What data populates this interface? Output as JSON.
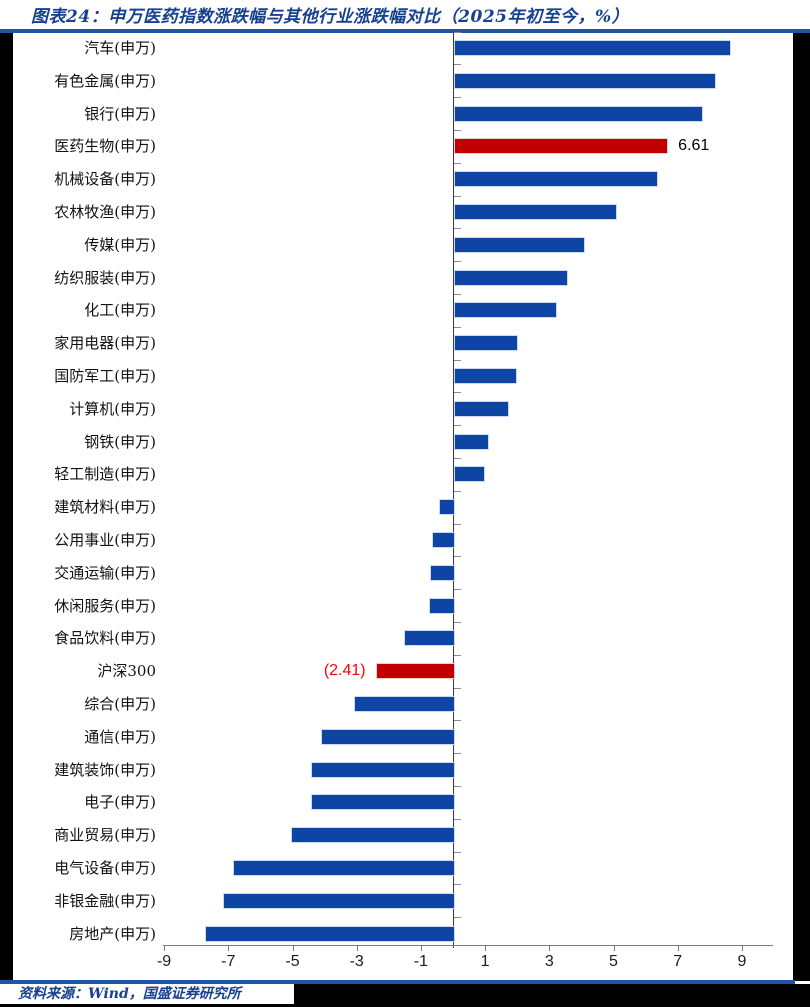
{
  "header": {
    "title": "图表24：申万医药指数涨跌幅与其他行业涨跌幅对比（2025年初至今，%）"
  },
  "footer": {
    "source": "资料来源：Wind，国盛证券研究所"
  },
  "colors": {
    "accent_blue": "#17418F",
    "rule_blue": "#2154A6",
    "bar_blue": "#0E45A5",
    "bar_red": "#C00000",
    "value_label_red": "#FF0000",
    "axis_gray": "#7a7a7a",
    "text_black": "#111111"
  },
  "chart_data": {
    "type": "bar",
    "orientation": "horizontal",
    "title": "申万医药指数涨跌幅与其他行业涨跌幅对比（2025年初至今，%）",
    "unit": "%",
    "grid": false,
    "categories": [
      "汽车(申万)",
      "有色金属(申万)",
      "银行(申万)",
      "医药生物(申万)",
      "机械设备(申万)",
      "农林牧渔(申万)",
      "传媒(申万)",
      "纺织服装(申万)",
      "化工(申万)",
      "家用电器(申万)",
      "国防军工(申万)",
      "计算机(申万)",
      "钢铁(申万)",
      "轻工制造(申万)",
      "建筑材料(申万)",
      "公用事业(申万)",
      "交通运输(申万)",
      "休闲服务(申万)",
      "食品饮料(申万)",
      "沪深300",
      "综合(申万)",
      "通信(申万)",
      "建筑装饰(申万)",
      "电子(申万)",
      "商业贸易(申万)",
      "电气设备(申万)",
      "非银金融(申万)",
      "房地产(申万)"
    ],
    "values": [
      8.56,
      8.11,
      7.68,
      6.61,
      6.28,
      5.01,
      4.02,
      3.49,
      3.13,
      1.93,
      1.9,
      1.65,
      1.04,
      0.9,
      -0.45,
      -0.65,
      -0.73,
      -0.75,
      -1.52,
      -2.41,
      -3.08,
      -4.1,
      -4.41,
      -4.43,
      -5.04,
      -6.85,
      -7.16,
      -7.72
    ],
    "highlight_indices": [
      3,
      19
    ],
    "data_labels": [
      {
        "index": 3,
        "text": "6.61",
        "side": "right",
        "color": "#000000"
      },
      {
        "index": 19,
        "text": "(2.41)",
        "side": "left",
        "color": "#FF0000"
      }
    ],
    "x_ticks": [
      -9,
      -7,
      -5,
      -3,
      -1,
      1,
      3,
      5,
      7,
      9
    ],
    "xlim": [
      -9.5,
      10
    ]
  }
}
